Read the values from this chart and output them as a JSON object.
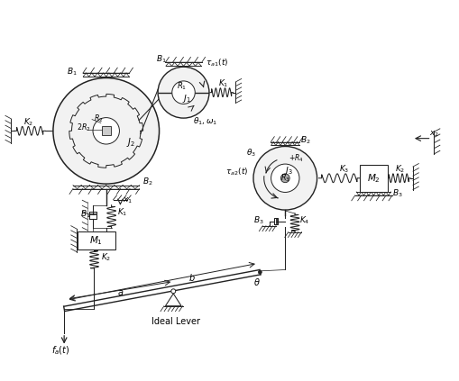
{
  "bg": "#ffffff",
  "lc": "#222222",
  "figsize": [
    5.1,
    4.23
  ],
  "dpi": 100,
  "xlim": [
    0,
    10.2
  ],
  "ylim": [
    0,
    8.6
  ]
}
